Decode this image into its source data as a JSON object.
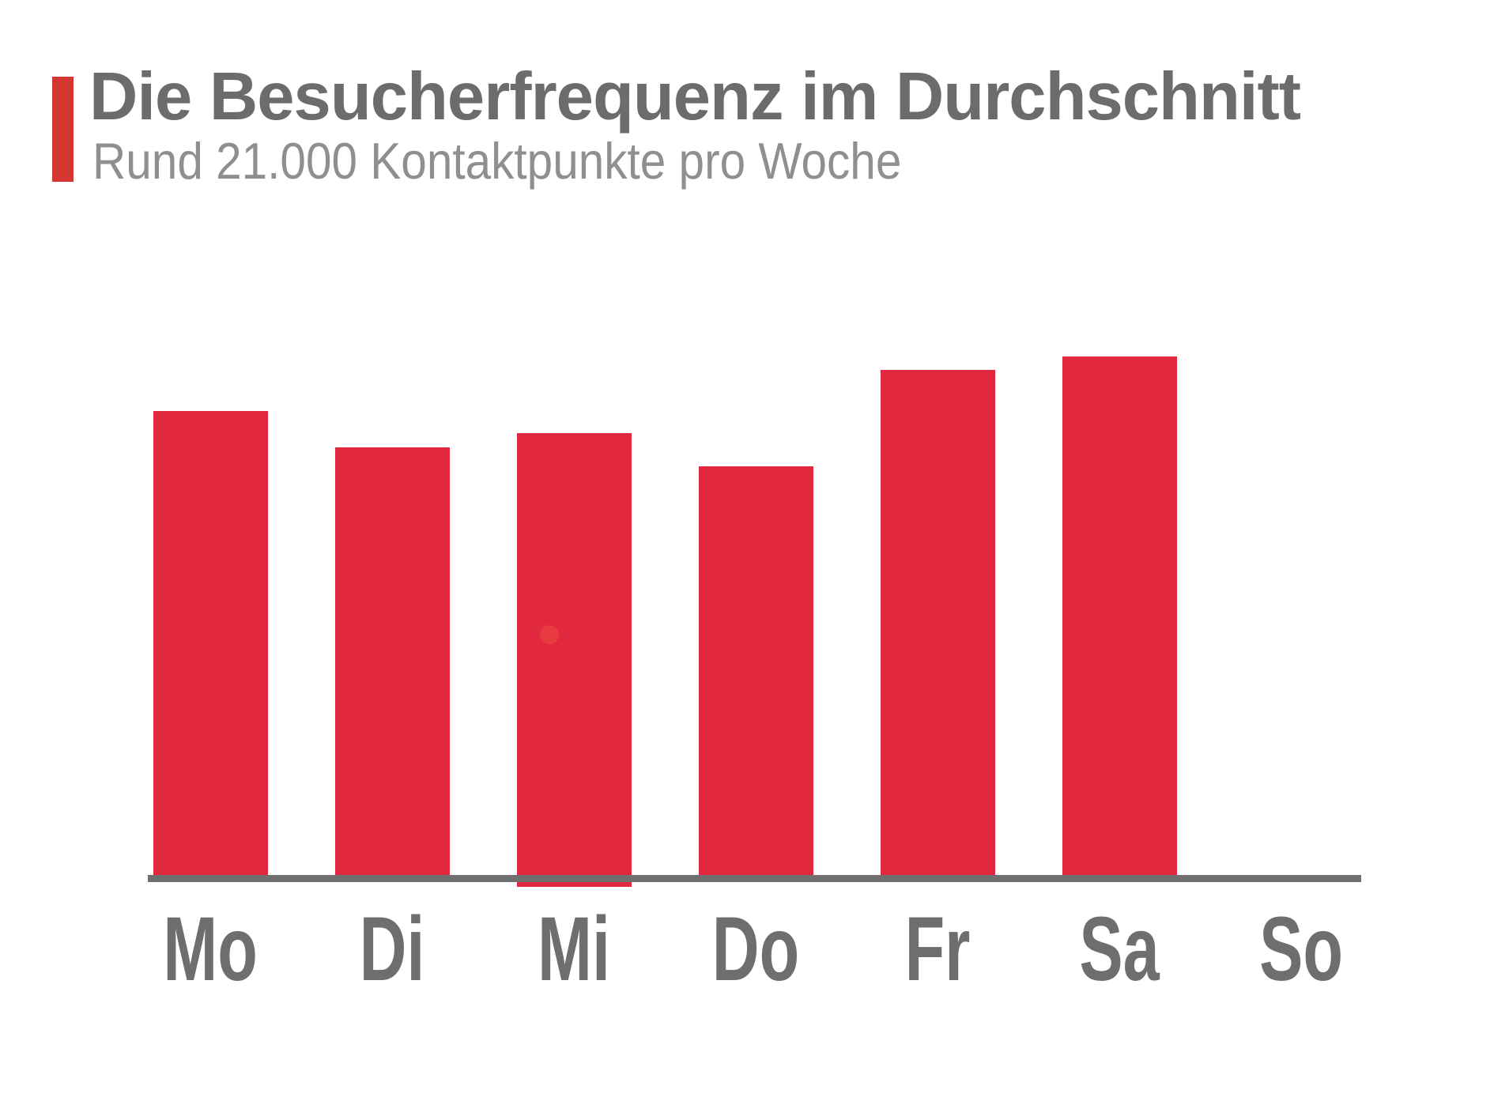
{
  "page": {
    "background": "#ffffff"
  },
  "header": {
    "title": "Die Besucherfrequenz im Durchschnitt",
    "subtitle": "Rund 21.000 Kontaktpunkte pro Woche",
    "accent_color": "#D23831",
    "title_color": "#6C6C6C",
    "subtitle_color": "#8F8F8F"
  },
  "chart_data": {
    "type": "bar",
    "title": "Die Besucherfrequenz im Durchschnitt",
    "subtitle": "Rund 21.000 Kontaktpunkte pro Woche",
    "categories": [
      "Mo",
      "Di",
      "Mi",
      "Do",
      "Fr",
      "Sa",
      "So"
    ],
    "values": [
      592,
      546,
      564,
      522,
      644,
      661,
      0
    ],
    "values_unit": "bar height in px (chart shows no numeric axis)",
    "values_pct_of_max": [
      89.6,
      82.6,
      85.3,
      79.0,
      97.4,
      100.0,
      0.0
    ],
    "xlabel": "",
    "ylabel": "",
    "grid": false,
    "legend": false,
    "bar_color": "#E2283F",
    "axis_color": "#6F6F6F",
    "label_color": "#6E6E6E",
    "artifact_dot_color": "#EB4A42"
  }
}
